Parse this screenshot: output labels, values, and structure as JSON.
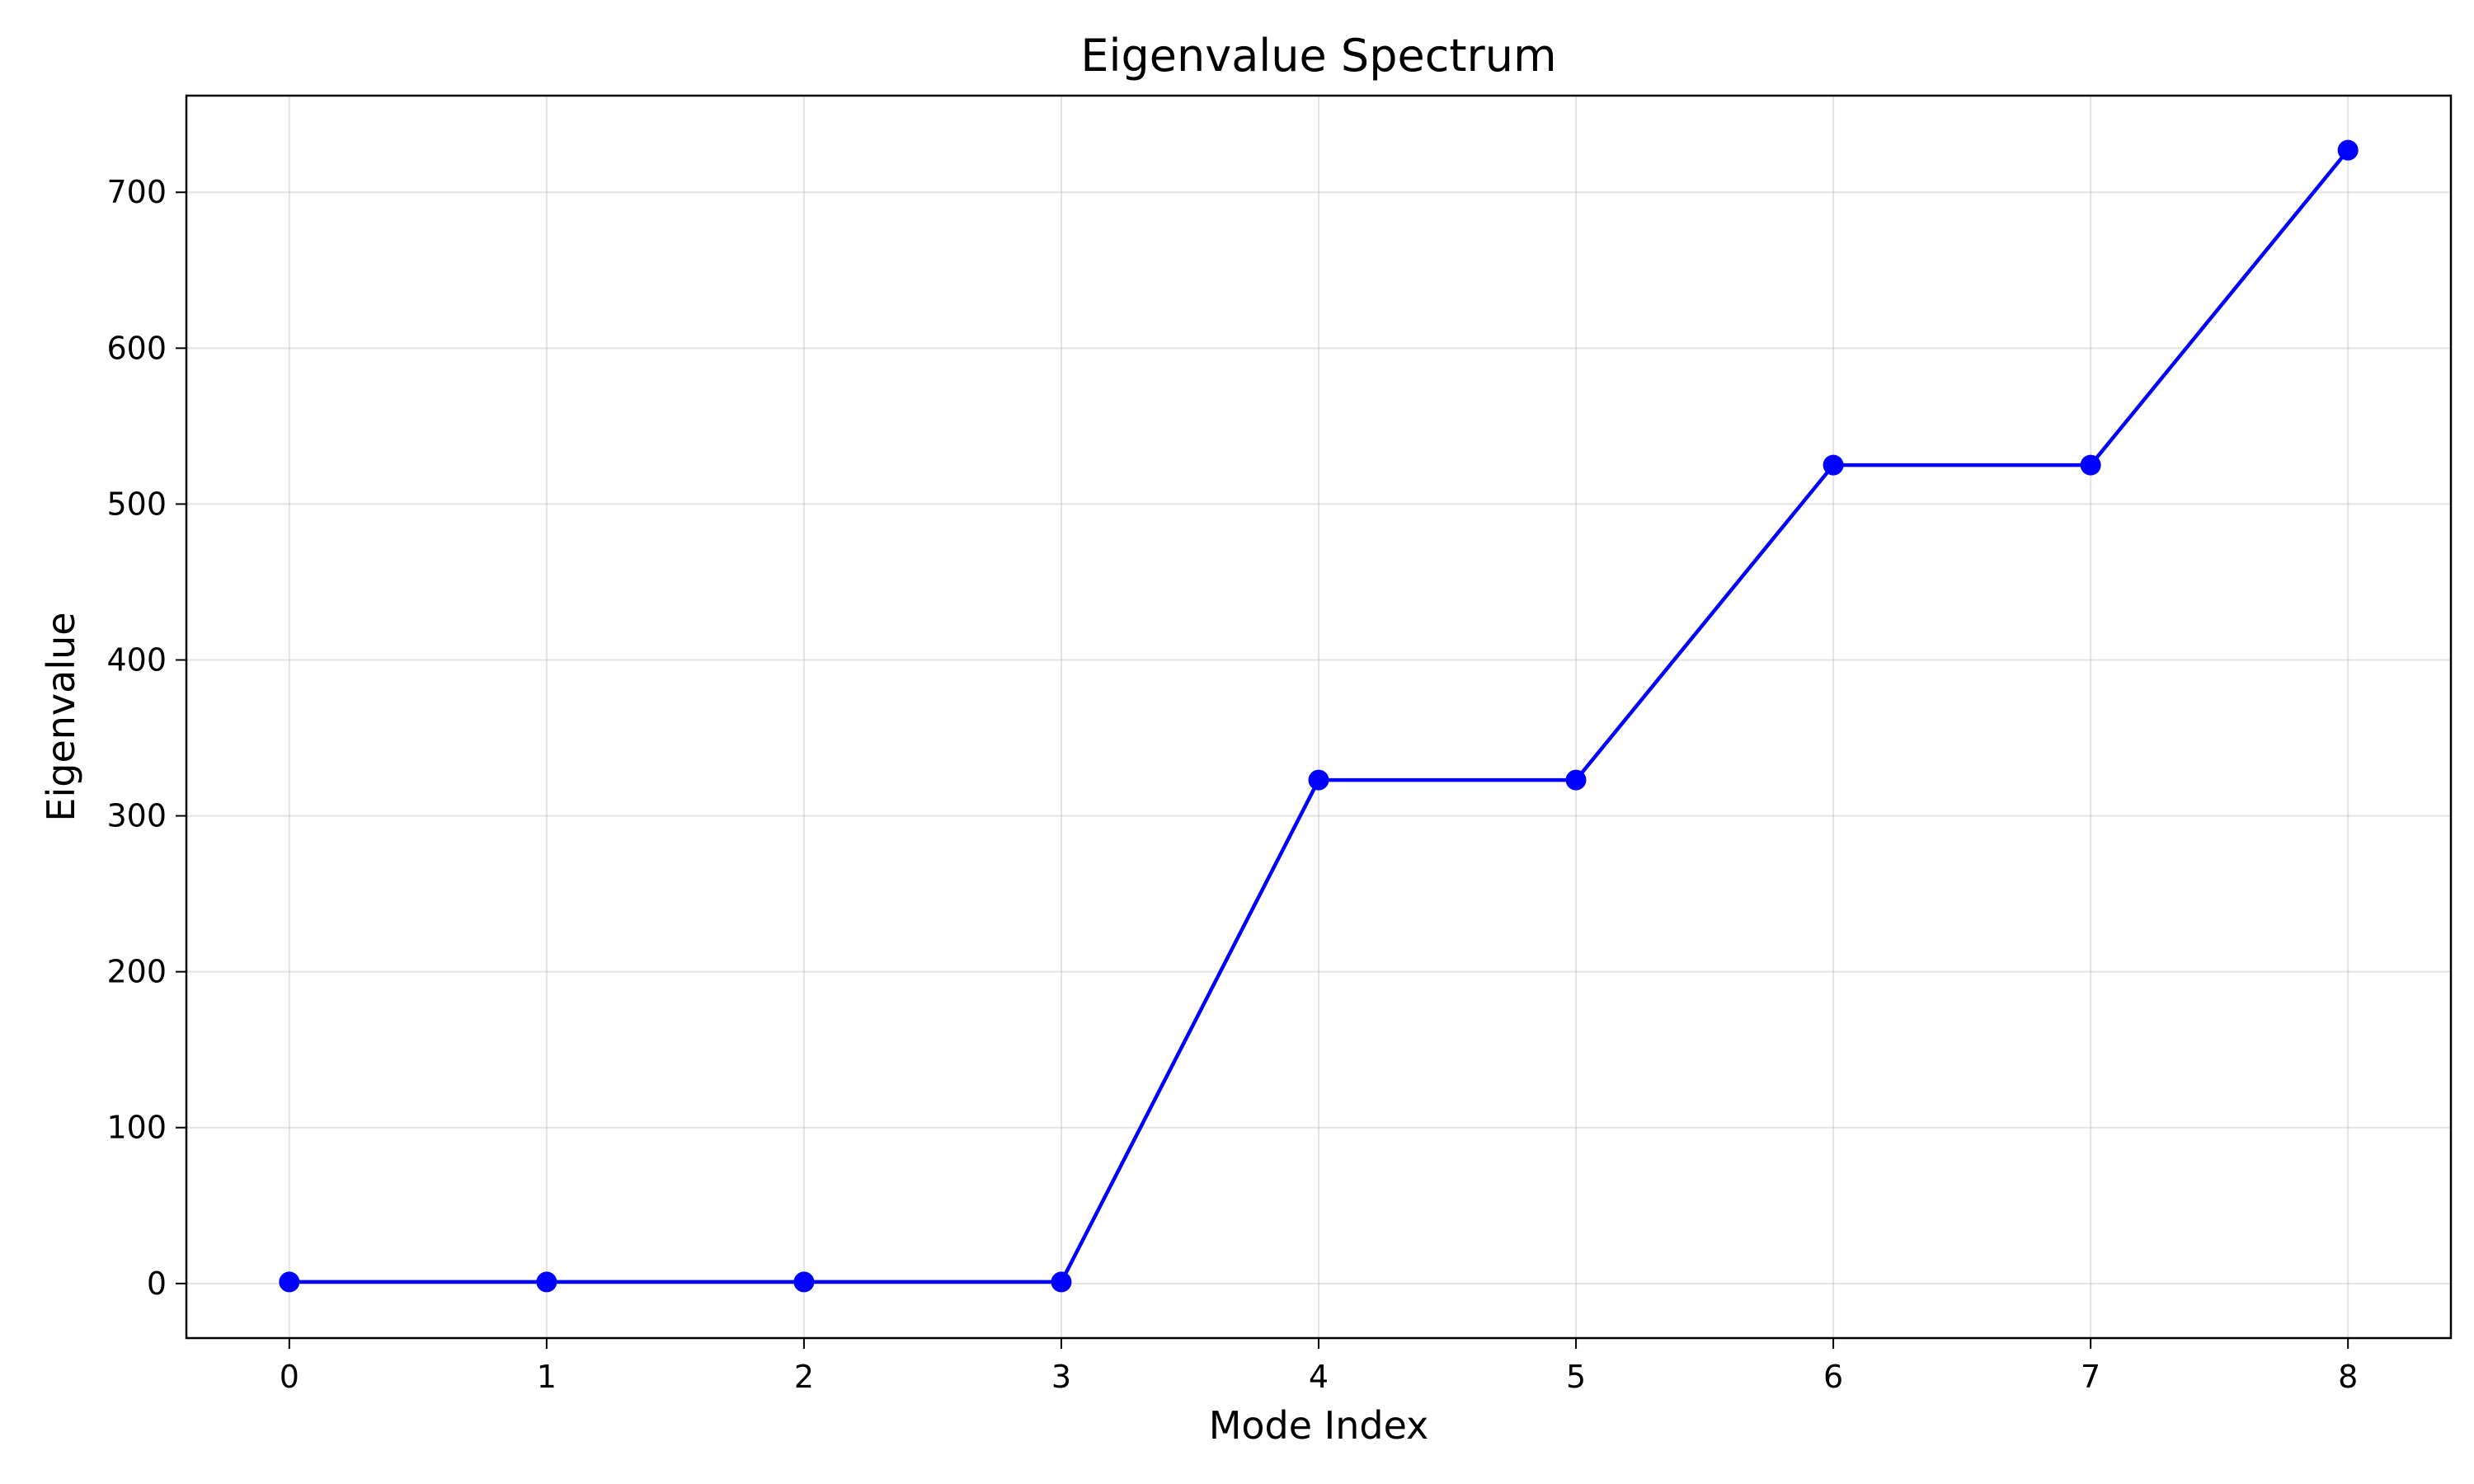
{
  "chart_data": {
    "type": "line",
    "title": "Eigenvalue Spectrum",
    "xlabel": "Mode Index",
    "ylabel": "Eigenvalue",
    "x": [
      0,
      1,
      2,
      3,
      4,
      5,
      6,
      7,
      8
    ],
    "xlim": [
      -0.4,
      8.4
    ],
    "ylim": [
      -35,
      762
    ],
    "xticks": [
      0,
      1,
      2,
      3,
      4,
      5,
      6,
      7,
      8
    ],
    "xtick_labels": [
      "0",
      "1",
      "2",
      "3",
      "4",
      "5",
      "6",
      "7",
      "8"
    ],
    "yticks": [
      0,
      100,
      200,
      300,
      400,
      500,
      600,
      700
    ],
    "ytick_labels": [
      "0",
      "100",
      "200",
      "300",
      "400",
      "500",
      "600",
      "700"
    ],
    "grid": true,
    "series": [
      {
        "values": [
          1,
          1,
          1,
          1,
          323,
          323,
          525,
          525,
          727
        ],
        "color": "#0000ff",
        "marker": "circle"
      }
    ]
  }
}
